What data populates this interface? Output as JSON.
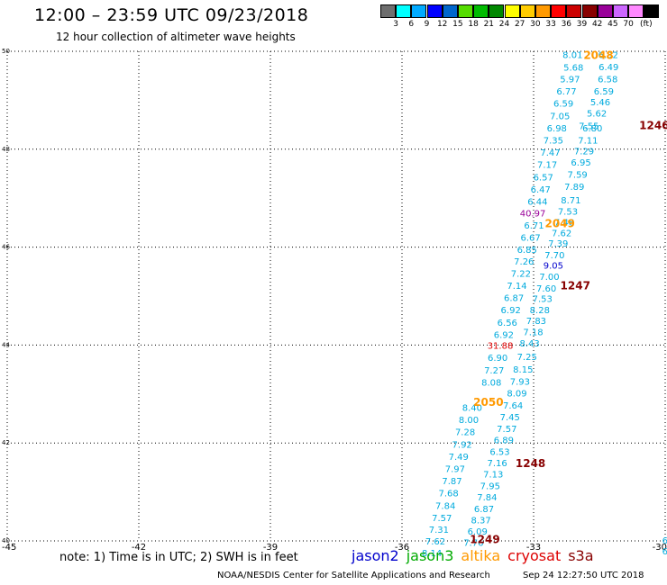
{
  "header": {
    "title": "12:00 – 23:59 UTC 09/23/2018",
    "subtitle": "12 hour collection of altimeter wave heights"
  },
  "colorbar": {
    "unit": "(ft)",
    "colors": [
      "#6e6e6e",
      "#00ffff",
      "#00aaff",
      "#0000ff",
      "#0066cc",
      "#55dd00",
      "#00bb00",
      "#008800",
      "#ffff00",
      "#ffcc00",
      "#ff9900",
      "#ff0000",
      "#cc0000",
      "#880000",
      "#990099",
      "#cc66ff",
      "#ff88ff",
      "#000000"
    ],
    "labels": [
      "3",
      "6",
      "9",
      "12",
      "15",
      "18",
      "21",
      "24",
      "27",
      "30",
      "33",
      "36",
      "39",
      "42",
      "45",
      "70"
    ]
  },
  "axes": {
    "y_ticks": [
      {
        "value": 50,
        "label": "50"
      },
      {
        "value": 48,
        "label": "48"
      },
      {
        "value": 46,
        "label": "46"
      },
      {
        "value": 44,
        "label": "44"
      },
      {
        "value": 42,
        "label": "42"
      },
      {
        "value": 40,
        "label": "40"
      }
    ],
    "x_ticks": [
      {
        "value": -45,
        "label": "-45"
      },
      {
        "value": -42,
        "label": "-42"
      },
      {
        "value": -39,
        "label": "-39"
      },
      {
        "value": -36,
        "label": "-36"
      },
      {
        "value": -33,
        "label": "-33"
      },
      {
        "value": -30,
        "label": "-30"
      }
    ]
  },
  "chart_data": {
    "type": "scatter",
    "title": "12:00 – 23:59 UTC 09/23/2018",
    "xlim": [
      -45,
      -30
    ],
    "ylim": [
      40,
      50
    ],
    "grid": true,
    "points": [
      {
        "lon": -32.11,
        "lat": 49.94,
        "v": "8.01",
        "c": "#00aadd"
      },
      {
        "lon": -31.3,
        "lat": 49.94,
        "v": "6.32",
        "c": "#00aadd"
      },
      {
        "lon": -32.09,
        "lat": 49.68,
        "v": "5.68",
        "c": "#00aadd"
      },
      {
        "lon": -31.29,
        "lat": 49.69,
        "v": "6.49",
        "c": "#00aadd"
      },
      {
        "lon": -32.17,
        "lat": 49.44,
        "v": "5.97",
        "c": "#00aadd"
      },
      {
        "lon": -31.31,
        "lat": 49.44,
        "v": "6.58",
        "c": "#00aadd"
      },
      {
        "lon": -32.25,
        "lat": 49.19,
        "v": "6.77",
        "c": "#00aadd"
      },
      {
        "lon": -31.4,
        "lat": 49.19,
        "v": "6.59",
        "c": "#00aadd"
      },
      {
        "lon": -32.32,
        "lat": 48.94,
        "v": "6.59",
        "c": "#00aadd"
      },
      {
        "lon": -31.48,
        "lat": 48.97,
        "v": "5.46",
        "c": "#00aadd"
      },
      {
        "lon": -32.4,
        "lat": 48.69,
        "v": "7.05",
        "c": "#00aadd"
      },
      {
        "lon": -31.56,
        "lat": 48.74,
        "v": "5.62",
        "c": "#00aadd"
      },
      {
        "lon": -32.47,
        "lat": 48.44,
        "v": "6.98",
        "c": "#00aadd"
      },
      {
        "lon": -31.66,
        "lat": 48.44,
        "v": "6.80",
        "c": "#00aadd"
      },
      {
        "lon": -31.74,
        "lat": 48.48,
        "v": "7.55",
        "c": "#00aadd"
      },
      {
        "lon": -32.55,
        "lat": 48.19,
        "v": "7.35",
        "c": "#00aadd"
      },
      {
        "lon": -31.76,
        "lat": 48.19,
        "v": "7.11",
        "c": "#00aadd"
      },
      {
        "lon": -32.62,
        "lat": 47.94,
        "v": "7.47",
        "c": "#00aadd"
      },
      {
        "lon": -31.85,
        "lat": 47.97,
        "v": "7.29",
        "c": "#00aadd"
      },
      {
        "lon": -32.69,
        "lat": 47.69,
        "v": "7.17",
        "c": "#00aadd"
      },
      {
        "lon": -31.92,
        "lat": 47.74,
        "v": "6.95",
        "c": "#00aadd"
      },
      {
        "lon": -32.78,
        "lat": 47.44,
        "v": "6.57",
        "c": "#00aadd"
      },
      {
        "lon": -32.0,
        "lat": 47.49,
        "v": "7.59",
        "c": "#00aadd"
      },
      {
        "lon": -32.84,
        "lat": 47.19,
        "v": "6.47",
        "c": "#00aadd"
      },
      {
        "lon": -32.07,
        "lat": 47.24,
        "v": "7.89",
        "c": "#00aadd"
      },
      {
        "lon": -32.91,
        "lat": 46.94,
        "v": "6.44",
        "c": "#00aadd"
      },
      {
        "lon": -32.15,
        "lat": 46.97,
        "v": "8.71",
        "c": "#00aadd"
      },
      {
        "lon": -32.22,
        "lat": 46.74,
        "v": "7.53",
        "c": "#00aadd"
      },
      {
        "lon": -33.02,
        "lat": 46.7,
        "v": "40.97",
        "c": "#990099"
      },
      {
        "lon": -32.99,
        "lat": 46.45,
        "v": "6.71",
        "c": "#00aadd"
      },
      {
        "lon": -32.3,
        "lat": 46.52,
        "v": "7.48",
        "c": "#00aadd"
      },
      {
        "lon": -32.36,
        "lat": 46.3,
        "v": "7.62",
        "c": "#00aadd"
      },
      {
        "lon": -33.07,
        "lat": 46.2,
        "v": "6.67",
        "c": "#00aadd"
      },
      {
        "lon": -32.44,
        "lat": 46.08,
        "v": "7.39",
        "c": "#00aadd"
      },
      {
        "lon": -33.15,
        "lat": 45.96,
        "v": "6.85",
        "c": "#00aadd"
      },
      {
        "lon": -32.52,
        "lat": 45.85,
        "v": "7.70",
        "c": "#00aadd"
      },
      {
        "lon": -33.22,
        "lat": 45.72,
        "v": "7.26",
        "c": "#00aadd"
      },
      {
        "lon": -32.55,
        "lat": 45.63,
        "v": "9.05",
        "c": "#0000cc"
      },
      {
        "lon": -33.29,
        "lat": 45.47,
        "v": "7.22",
        "c": "#00aadd"
      },
      {
        "lon": -32.64,
        "lat": 45.4,
        "v": "7.00",
        "c": "#00aadd"
      },
      {
        "lon": -33.38,
        "lat": 45.22,
        "v": "7.14",
        "c": "#00aadd"
      },
      {
        "lon": -32.71,
        "lat": 45.17,
        "v": "7.60",
        "c": "#00aadd"
      },
      {
        "lon": -33.45,
        "lat": 44.97,
        "v": "6.87",
        "c": "#00aadd"
      },
      {
        "lon": -32.8,
        "lat": 44.95,
        "v": "7.53",
        "c": "#00aadd"
      },
      {
        "lon": -33.52,
        "lat": 44.72,
        "v": "6.92",
        "c": "#00aadd"
      },
      {
        "lon": -32.86,
        "lat": 44.72,
        "v": "8.28",
        "c": "#00aadd"
      },
      {
        "lon": -33.6,
        "lat": 44.47,
        "v": "6.56",
        "c": "#00aadd"
      },
      {
        "lon": -32.94,
        "lat": 44.5,
        "v": "7.83",
        "c": "#00aadd"
      },
      {
        "lon": -33.68,
        "lat": 44.22,
        "v": "6.92",
        "c": "#00aadd"
      },
      {
        "lon": -33.01,
        "lat": 44.27,
        "v": "7.18",
        "c": "#00aadd"
      },
      {
        "lon": -33.76,
        "lat": 44.0,
        "v": "31.88",
        "c": "#dd0000"
      },
      {
        "lon": -33.09,
        "lat": 44.04,
        "v": "8.43",
        "c": "#00aadd"
      },
      {
        "lon": -33.82,
        "lat": 43.75,
        "v": "6.90",
        "c": "#00aadd"
      },
      {
        "lon": -33.15,
        "lat": 43.77,
        "v": "7.25",
        "c": "#00aadd"
      },
      {
        "lon": -33.9,
        "lat": 43.49,
        "v": "7.27",
        "c": "#00aadd"
      },
      {
        "lon": -33.24,
        "lat": 43.51,
        "v": "8.15",
        "c": "#00aadd"
      },
      {
        "lon": -33.96,
        "lat": 43.24,
        "v": "8.08",
        "c": "#00aadd"
      },
      {
        "lon": -33.31,
        "lat": 43.26,
        "v": "7.93",
        "c": "#00aadd"
      },
      {
        "lon": -33.38,
        "lat": 43.02,
        "v": "8.09",
        "c": "#00aadd"
      },
      {
        "lon": -33.47,
        "lat": 42.78,
        "v": "7.64",
        "c": "#00aadd"
      },
      {
        "lon": -34.4,
        "lat": 42.73,
        "v": "8.40",
        "c": "#00aadd"
      },
      {
        "lon": -33.54,
        "lat": 42.54,
        "v": "7.45",
        "c": "#00aadd"
      },
      {
        "lon": -34.48,
        "lat": 42.48,
        "v": "8.00",
        "c": "#00aadd"
      },
      {
        "lon": -33.61,
        "lat": 42.3,
        "v": "7.57",
        "c": "#00aadd"
      },
      {
        "lon": -34.56,
        "lat": 42.23,
        "v": "7.28",
        "c": "#00aadd"
      },
      {
        "lon": -33.68,
        "lat": 42.07,
        "v": "6.89",
        "c": "#00aadd"
      },
      {
        "lon": -34.63,
        "lat": 41.98,
        "v": "7.92",
        "c": "#00aadd"
      },
      {
        "lon": -33.77,
        "lat": 41.83,
        "v": "6.53",
        "c": "#00aadd"
      },
      {
        "lon": -34.71,
        "lat": 41.73,
        "v": "7.49",
        "c": "#00aadd"
      },
      {
        "lon": -33.83,
        "lat": 41.6,
        "v": "7.16",
        "c": "#00aadd"
      },
      {
        "lon": -34.79,
        "lat": 41.48,
        "v": "7.97",
        "c": "#00aadd"
      },
      {
        "lon": -33.92,
        "lat": 41.37,
        "v": "7.13",
        "c": "#00aadd"
      },
      {
        "lon": -34.86,
        "lat": 41.23,
        "v": "7.87",
        "c": "#00aadd"
      },
      {
        "lon": -33.99,
        "lat": 41.13,
        "v": "7.95",
        "c": "#00aadd"
      },
      {
        "lon": -34.94,
        "lat": 40.98,
        "v": "7.68",
        "c": "#00aadd"
      },
      {
        "lon": -34.06,
        "lat": 40.9,
        "v": "7.84",
        "c": "#00aadd"
      },
      {
        "lon": -35.01,
        "lat": 40.73,
        "v": "7.84",
        "c": "#00aadd"
      },
      {
        "lon": -34.13,
        "lat": 40.66,
        "v": "6.87",
        "c": "#00aadd"
      },
      {
        "lon": -35.09,
        "lat": 40.48,
        "v": "7.57",
        "c": "#00aadd"
      },
      {
        "lon": -34.2,
        "lat": 40.43,
        "v": "8.37",
        "c": "#00aadd"
      },
      {
        "lon": -35.16,
        "lat": 40.24,
        "v": "7.31",
        "c": "#00aadd"
      },
      {
        "lon": -34.28,
        "lat": 40.2,
        "v": "6.09",
        "c": "#00aadd"
      },
      {
        "lon": -35.24,
        "lat": 40.0,
        "v": "7.62",
        "c": "#00aadd"
      },
      {
        "lon": -34.37,
        "lat": 39.97,
        "v": "7.76",
        "c": "#00aadd"
      },
      {
        "lon": -35.32,
        "lat": 39.76,
        "v": "8.14",
        "c": "#00aadd"
      },
      {
        "lon": -29.97,
        "lat": 40.02,
        "v": "6.",
        "c": "#00aadd"
      },
      {
        "lon": -29.97,
        "lat": 39.8,
        "v": "6.",
        "c": "#00aadd"
      }
    ],
    "passes": [
      {
        "lon": -31.52,
        "lat": 49.94,
        "label": "2048",
        "c": "#ff9900"
      },
      {
        "lon": -30.25,
        "lat": 48.5,
        "label": "1246",
        "c": "#880000"
      },
      {
        "lon": -32.4,
        "lat": 46.5,
        "label": "2049",
        "c": "#ff9900"
      },
      {
        "lon": -32.05,
        "lat": 45.23,
        "label": "1247",
        "c": "#880000"
      },
      {
        "lon": -34.03,
        "lat": 42.85,
        "label": "2050",
        "c": "#ff9900"
      },
      {
        "lon": -33.07,
        "lat": 41.6,
        "label": "1248",
        "c": "#880000"
      },
      {
        "lon": -34.11,
        "lat": 40.05,
        "label": "1249",
        "c": "#880000"
      }
    ]
  },
  "footer": {
    "note": "note: 1) Time is in UTC; 2) SWH is in feet",
    "satellites": [
      {
        "name": "jason2",
        "color": "#0000cc"
      },
      {
        "name": "jason3",
        "color": "#00aa00"
      },
      {
        "name": "altika",
        "color": "#ff9900"
      },
      {
        "name": "cryosat",
        "color": "#dd0000"
      },
      {
        "name": "s3a",
        "color": "#880000"
      }
    ],
    "credit": "NOAA/NESDIS Center for Satellite Applications and Research",
    "timestamp": "Sep 24 12:27:50 UTC 2018"
  }
}
